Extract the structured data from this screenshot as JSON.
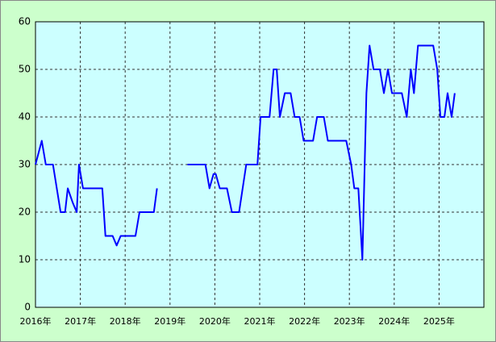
{
  "chart_data": {
    "type": "line",
    "x": [
      2016.0,
      2016.14,
      2016.23,
      2016.39,
      2016.56,
      2016.66,
      2016.72,
      2016.83,
      2016.92,
      2016.97,
      2017.06,
      2017.49,
      2017.56,
      2017.72,
      2017.81,
      2017.9,
      2018.23,
      2018.32,
      2018.64,
      2018.71,
      2019.0,
      2019.39,
      2019.79,
      2019.88,
      2019.97,
      2020.02,
      2020.11,
      2020.27,
      2020.38,
      2020.54,
      2020.7,
      2020.95,
      2021.02,
      2021.22,
      2021.31,
      2021.38,
      2021.45,
      2021.56,
      2021.69,
      2021.78,
      2021.89,
      2021.98,
      2022.19,
      2022.28,
      2022.43,
      2022.52,
      2022.93,
      2023.04,
      2023.11,
      2023.2,
      2023.29,
      2023.38,
      2023.45,
      2023.54,
      2023.68,
      2023.77,
      2023.86,
      2023.95,
      2024.17,
      2024.28,
      2024.37,
      2024.44,
      2024.53,
      2024.87,
      2024.96,
      2025.03,
      2025.12,
      2025.19,
      2025.28,
      2025.35
    ],
    "series": [
      {
        "color": "#0000ff",
        "values": [
          30,
          35,
          30,
          30,
          20,
          20,
          25,
          22,
          20,
          30,
          25,
          25,
          15,
          15,
          13,
          15,
          15,
          20,
          20,
          25,
          null,
          30,
          30,
          25,
          28,
          28,
          25,
          25,
          20,
          20,
          30,
          30,
          40,
          40,
          50,
          50,
          40,
          45,
          45,
          40,
          40,
          35,
          35,
          40,
          40,
          35,
          35,
          30,
          25,
          25,
          10,
          45,
          55,
          50,
          50,
          45,
          50,
          45,
          45,
          40,
          50,
          45,
          55,
          55,
          50,
          40,
          40,
          45,
          40,
          45
        ]
      }
    ],
    "xlim": [
      2016,
      2026
    ],
    "xticks": [
      {
        "value": 2016,
        "label": "2016年"
      },
      {
        "value": 2017,
        "label": "2017年"
      },
      {
        "value": 2018,
        "label": "2018年"
      },
      {
        "value": 2019,
        "label": "2019年"
      },
      {
        "value": 2020,
        "label": "2020年"
      },
      {
        "value": 2021,
        "label": "2021年"
      },
      {
        "value": 2022,
        "label": "2022年"
      },
      {
        "value": 2023,
        "label": "2023年"
      },
      {
        "value": 2024,
        "label": "2024年"
      },
      {
        "value": 2025,
        "label": "2025年"
      }
    ],
    "ylim": [
      0,
      60
    ],
    "yticks": [
      0,
      10,
      20,
      30,
      40,
      50,
      60
    ],
    "grid": true
  }
}
